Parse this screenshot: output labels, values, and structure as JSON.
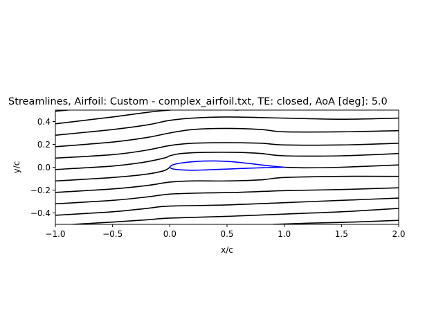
{
  "chart_data": {
    "type": "line",
    "title": "Streamlines, Airfoil: Custom - complex_airfoil.txt, TE: closed, AoA [deg]: 5.0",
    "xlabel": "x/c",
    "ylabel": "y/c",
    "xlim": [
      -1.0,
      2.0
    ],
    "ylim": [
      -0.5,
      0.5
    ],
    "xticks": [
      -1.0,
      -0.5,
      0.0,
      0.5,
      1.0,
      1.5,
      2.0
    ],
    "xtick_labels": [
      "−1.0",
      "−0.5",
      "0.0",
      "0.5",
      "1.0",
      "1.5",
      "2.0"
    ],
    "yticks": [
      -0.4,
      -0.2,
      0.0,
      0.2,
      0.4
    ],
    "ytick_labels": [
      "−0.4",
      "−0.2",
      "0.0",
      "0.2",
      "0.4"
    ],
    "grid": false,
    "colors": {
      "streamline": "#000000",
      "airfoil": "#0000ff"
    },
    "airfoil": {
      "upper": [
        [
          1.0,
          0.0
        ],
        [
          0.9,
          0.009
        ],
        [
          0.8,
          0.02
        ],
        [
          0.7,
          0.032
        ],
        [
          0.6,
          0.043
        ],
        [
          0.5,
          0.051
        ],
        [
          0.4,
          0.055
        ],
        [
          0.3,
          0.054
        ],
        [
          0.2,
          0.048
        ],
        [
          0.1,
          0.037
        ],
        [
          0.05,
          0.028
        ],
        [
          0.02,
          0.018
        ],
        [
          0.005,
          0.008
        ],
        [
          0.0,
          0.0
        ]
      ],
      "lower": [
        [
          0.0,
          0.0
        ],
        [
          0.005,
          -0.006
        ],
        [
          0.02,
          -0.013
        ],
        [
          0.05,
          -0.019
        ],
        [
          0.1,
          -0.023
        ],
        [
          0.2,
          -0.026
        ],
        [
          0.3,
          -0.024
        ],
        [
          0.4,
          -0.02
        ],
        [
          0.5,
          -0.016
        ],
        [
          0.6,
          -0.012
        ],
        [
          0.7,
          -0.008
        ],
        [
          0.8,
          -0.005
        ],
        [
          0.9,
          -0.002
        ],
        [
          1.0,
          0.0
        ]
      ]
    },
    "series": [
      {
        "points": [
          [
            -1.0,
            0.49
          ],
          [
            -0.7,
            0.52
          ]
        ]
      },
      {
        "points": [
          [
            -1.0,
            0.38
          ],
          [
            -0.5,
            0.44
          ],
          [
            -0.2,
            0.48
          ],
          [
            0.0,
            0.5
          ],
          [
            0.2,
            0.51
          ],
          [
            0.6,
            0.5
          ]
        ]
      },
      {
        "points": [
          [
            -1.0,
            0.28
          ],
          [
            -0.5,
            0.33
          ],
          [
            -0.2,
            0.37
          ],
          [
            0.0,
            0.41
          ],
          [
            0.2,
            0.43
          ],
          [
            0.5,
            0.44
          ],
          [
            1.0,
            0.43
          ],
          [
            1.5,
            0.42
          ],
          [
            2.0,
            0.43
          ]
        ]
      },
      {
        "points": [
          [
            -1.0,
            0.18
          ],
          [
            -0.5,
            0.22
          ],
          [
            -0.2,
            0.26
          ],
          [
            0.0,
            0.3
          ],
          [
            0.2,
            0.33
          ],
          [
            0.5,
            0.34
          ],
          [
            0.8,
            0.33
          ],
          [
            1.0,
            0.31
          ],
          [
            1.5,
            0.31
          ],
          [
            2.0,
            0.32
          ]
        ]
      },
      {
        "points": [
          [
            -1.0,
            0.08
          ],
          [
            -0.5,
            0.11
          ],
          [
            -0.2,
            0.15
          ],
          [
            0.0,
            0.19
          ],
          [
            0.2,
            0.21
          ],
          [
            0.5,
            0.215
          ],
          [
            0.8,
            0.21
          ],
          [
            1.0,
            0.195
          ],
          [
            1.5,
            0.195
          ],
          [
            2.0,
            0.21
          ]
        ]
      },
      {
        "points": [
          [
            -1.0,
            -0.02
          ],
          [
            -0.5,
            0.01
          ],
          [
            -0.25,
            0.04
          ],
          [
            -0.05,
            0.08
          ],
          [
            0.0,
            0.1
          ],
          [
            0.1,
            0.12
          ],
          [
            0.3,
            0.13
          ],
          [
            0.6,
            0.13
          ],
          [
            0.8,
            0.12
          ],
          [
            1.0,
            0.1
          ],
          [
            1.5,
            0.1
          ],
          [
            2.0,
            0.12
          ]
        ]
      },
      {
        "points": [
          [
            -1.0,
            -0.12
          ],
          [
            -0.5,
            -0.09
          ],
          [
            -0.2,
            -0.06
          ],
          [
            -0.05,
            -0.03
          ],
          [
            0.0,
            0.0
          ]
        ]
      },
      {
        "points": [
          [
            1.0,
            0.0
          ],
          [
            1.2,
            -0.005
          ],
          [
            1.5,
            0.0
          ],
          [
            2.0,
            0.02
          ]
        ]
      },
      {
        "points": [
          [
            -1.0,
            -0.22
          ],
          [
            -0.5,
            -0.19
          ],
          [
            -0.2,
            -0.16
          ],
          [
            0.0,
            -0.13
          ],
          [
            0.2,
            -0.12
          ],
          [
            0.5,
            -0.12
          ],
          [
            0.8,
            -0.11
          ],
          [
            1.0,
            -0.09
          ],
          [
            1.5,
            -0.08
          ],
          [
            2.0,
            -0.08
          ]
        ]
      },
      {
        "points": [
          [
            -1.0,
            -0.32
          ],
          [
            -0.5,
            -0.29
          ],
          [
            -0.2,
            -0.26
          ],
          [
            0.0,
            -0.235
          ],
          [
            0.3,
            -0.225
          ],
          [
            0.6,
            -0.22
          ],
          [
            1.0,
            -0.205
          ],
          [
            1.5,
            -0.195
          ],
          [
            2.0,
            -0.18
          ]
        ]
      },
      {
        "points": [
          [
            -1.0,
            -0.42
          ],
          [
            -0.5,
            -0.39
          ],
          [
            -0.2,
            -0.36
          ],
          [
            0.0,
            -0.34
          ],
          [
            0.5,
            -0.33
          ],
          [
            1.0,
            -0.31
          ],
          [
            1.5,
            -0.29
          ],
          [
            2.0,
            -0.27
          ]
        ]
      },
      {
        "points": [
          [
            -0.85,
            -0.5
          ],
          [
            -0.5,
            -0.48
          ],
          [
            -0.2,
            -0.46
          ],
          [
            0.0,
            -0.445
          ],
          [
            0.5,
            -0.43
          ],
          [
            1.0,
            -0.41
          ],
          [
            1.5,
            -0.39
          ],
          [
            2.0,
            -0.36
          ]
        ]
      },
      {
        "points": [
          [
            0.9,
            -0.5
          ],
          [
            1.2,
            -0.49
          ],
          [
            1.6,
            -0.48
          ],
          [
            2.0,
            -0.465
          ]
        ]
      }
    ]
  }
}
